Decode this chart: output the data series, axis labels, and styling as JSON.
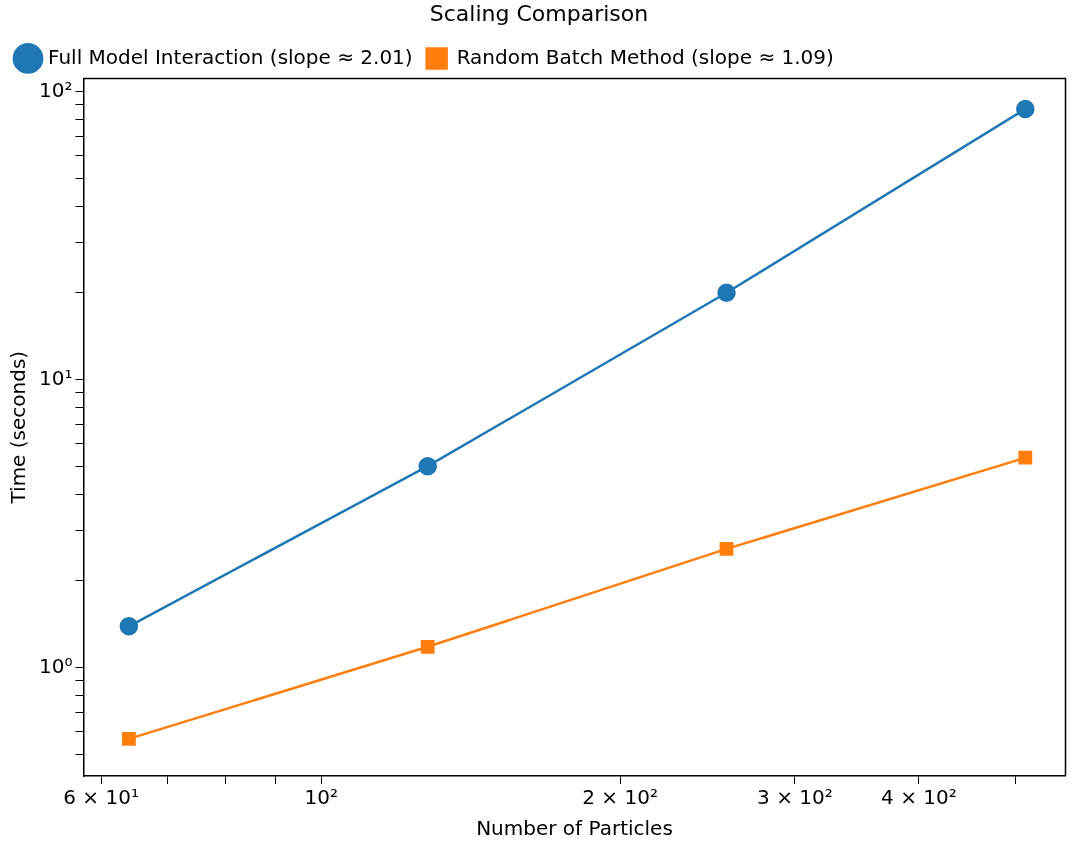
{
  "chart_data": {
    "type": "line",
    "title": "Scaling Comparison",
    "xlabel": "Number of Particles",
    "ylabel": "Time (seconds)",
    "x": [
      64,
      128,
      256,
      512
    ],
    "series": [
      {
        "name": "Full Model Interaction (slope ≈ 2.01)",
        "color": "#1f77b4",
        "marker": "circle",
        "values": [
          1.39,
          5.0,
          20.0,
          86.9
        ]
      },
      {
        "name": "Random Batch Method (slope ≈ 1.09)",
        "color": "#ff7f0e",
        "marker": "square",
        "values": [
          0.565,
          1.18,
          2.58,
          5.35
        ]
      }
    ],
    "log": "xy",
    "xlim": [
      57.6,
      562
    ],
    "ylim": [
      0.42,
      111
    ],
    "xticks": [
      {
        "value": 60,
        "label": "6 × 10¹"
      },
      {
        "value": 70,
        "label": null
      },
      {
        "value": 80,
        "label": null
      },
      {
        "value": 90,
        "label": null
      },
      {
        "value": 100,
        "label": "10²"
      },
      {
        "value": 200,
        "label": "2 × 10²"
      },
      {
        "value": 300,
        "label": "3 × 10²"
      },
      {
        "value": 400,
        "label": "4 × 10²"
      },
      {
        "value": 500,
        "label": null
      }
    ],
    "yticks": [
      {
        "value": 0.5,
        "label": null
      },
      {
        "value": 0.6,
        "label": null
      },
      {
        "value": 0.7,
        "label": null
      },
      {
        "value": 0.8,
        "label": null
      },
      {
        "value": 0.9,
        "label": null
      },
      {
        "value": 1,
        "label": "10⁰"
      },
      {
        "value": 2,
        "label": null
      },
      {
        "value": 3,
        "label": null
      },
      {
        "value": 4,
        "label": null
      },
      {
        "value": 5,
        "label": null
      },
      {
        "value": 6,
        "label": null
      },
      {
        "value": 7,
        "label": null
      },
      {
        "value": 8,
        "label": null
      },
      {
        "value": 9,
        "label": null
      },
      {
        "value": 10,
        "label": "10¹"
      },
      {
        "value": 20,
        "label": null
      },
      {
        "value": 30,
        "label": null
      },
      {
        "value": 40,
        "label": null
      },
      {
        "value": 50,
        "label": null
      },
      {
        "value": 60,
        "label": null
      },
      {
        "value": 70,
        "label": null
      },
      {
        "value": 80,
        "label": null
      },
      {
        "value": 90,
        "label": null
      },
      {
        "value": 100,
        "label": "10²"
      }
    ],
    "grid": false,
    "legend": "top left",
    "line_style": "solid"
  }
}
